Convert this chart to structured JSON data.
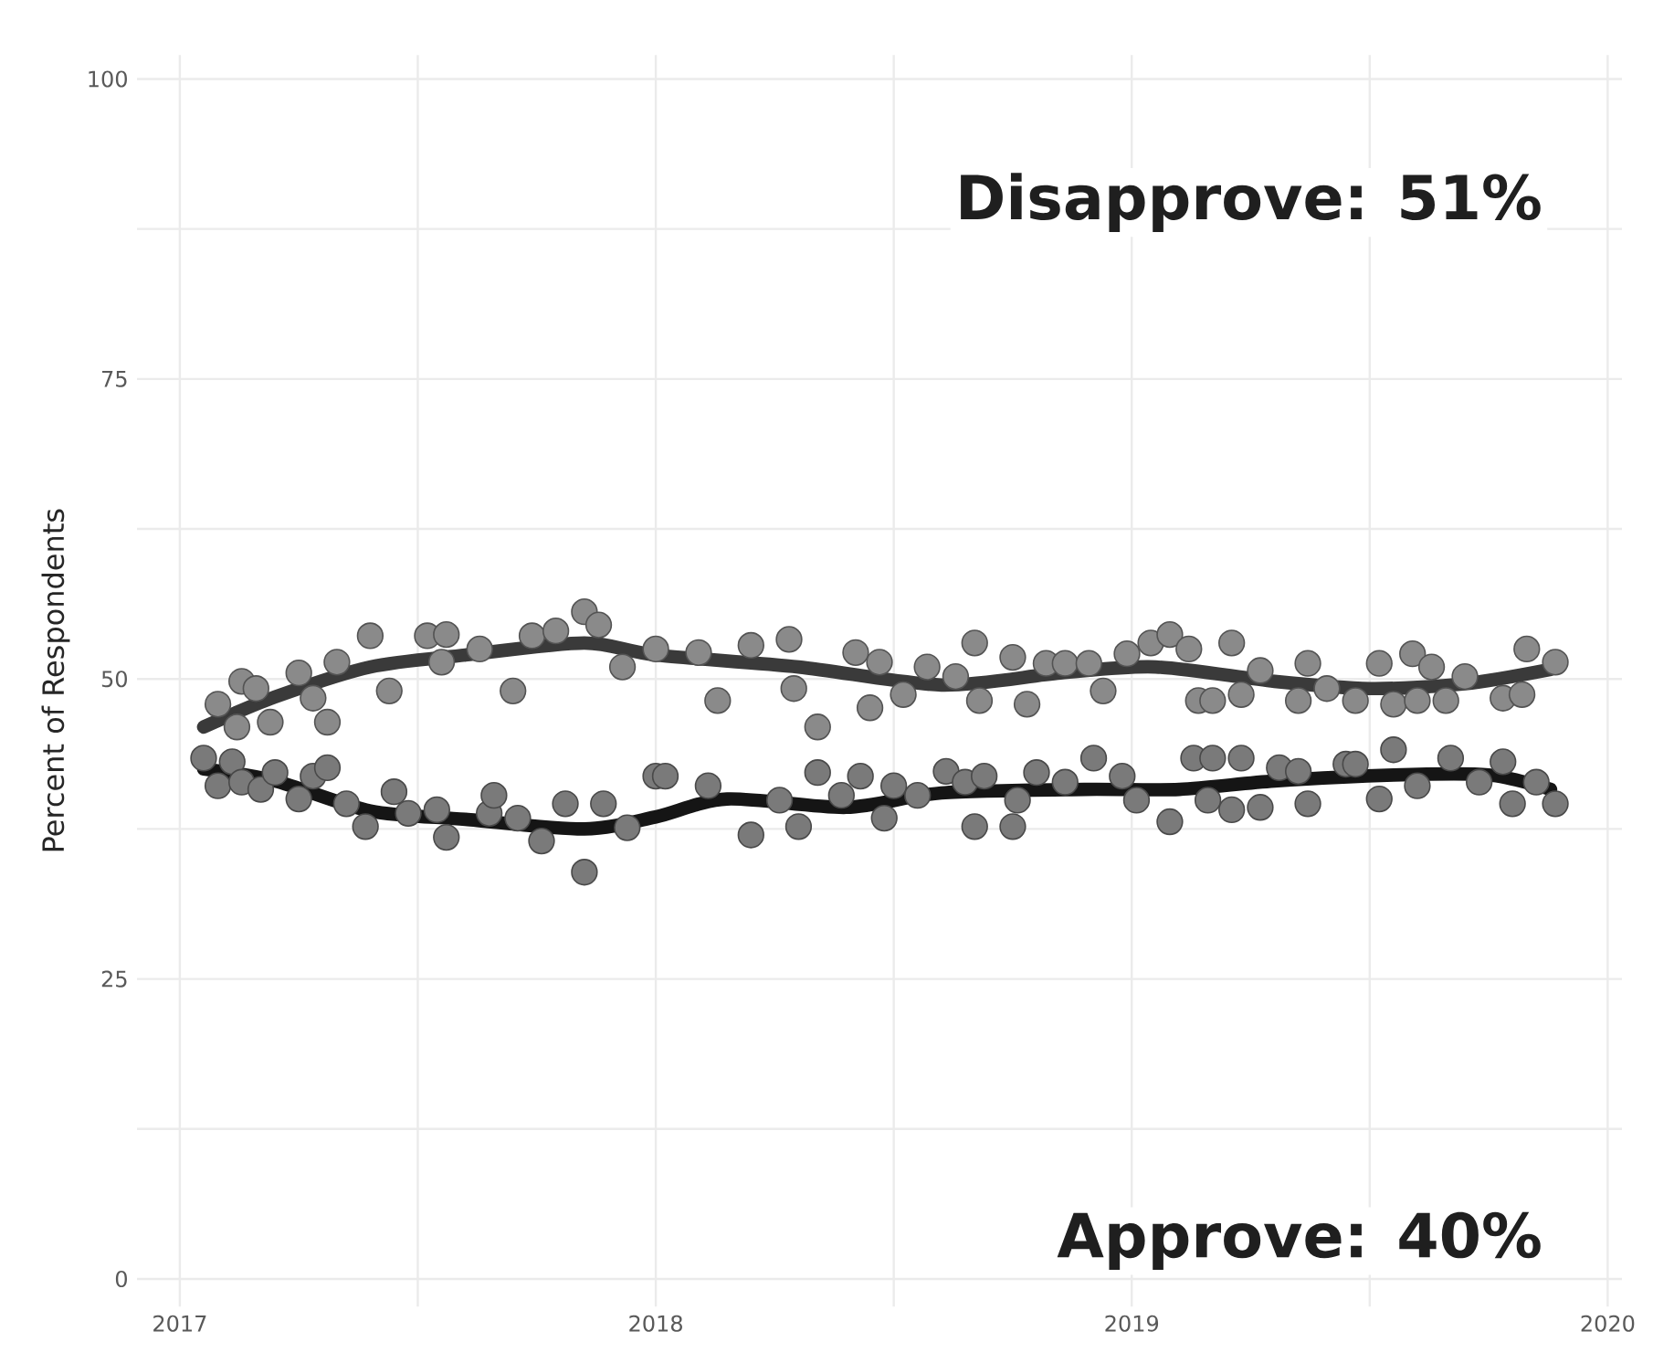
{
  "chart_data": {
    "type": "scatter",
    "ylabel": "Percent of Respondents",
    "annotations": [
      "Disapprove: 51%",
      "Approve: 40%"
    ],
    "xlim": [
      2016.91,
      2020.03
    ],
    "ylim": [
      -2.3,
      102
    ],
    "xticks": [
      2017,
      2018,
      2019,
      2020
    ],
    "yticks": [
      0,
      25,
      50,
      75,
      100
    ],
    "grid": true,
    "series": [
      {
        "marker": "circle",
        "color": "#8a8a8a",
        "x": [
          2017.08,
          2017.12,
          2017.13,
          2017.16,
          2017.19,
          2017.25,
          2017.28,
          2017.31,
          2017.33,
          2017.4,
          2017.44,
          2017.52,
          2017.55,
          2017.56,
          2017.63,
          2017.7,
          2017.74,
          2017.79,
          2017.85,
          2017.88,
          2017.93,
          2018.0,
          2018.09,
          2018.13,
          2018.2,
          2018.28,
          2018.29,
          2018.34,
          2018.42,
          2018.45,
          2018.47,
          2018.52,
          2018.57,
          2018.63,
          2018.67,
          2018.68,
          2018.75,
          2018.78,
          2018.82,
          2018.86,
          2018.91,
          2018.94,
          2018.99,
          2019.04,
          2019.08,
          2019.12,
          2019.14,
          2019.17,
          2019.21,
          2019.23,
          2019.27,
          2019.35,
          2019.37,
          2019.41,
          2019.47,
          2019.52,
          2019.55,
          2019.59,
          2019.6,
          2019.63,
          2019.66,
          2019.7,
          2019.78,
          2019.82,
          2019.83,
          2019.89
        ],
        "values": [
          47.9,
          46.0,
          49.8,
          49.2,
          46.4,
          50.5,
          48.4,
          46.4,
          51.4,
          53.6,
          49.0,
          53.6,
          51.4,
          53.7,
          52.5,
          49.0,
          53.6,
          54.0,
          55.6,
          54.5,
          51.0,
          52.5,
          52.2,
          48.2,
          52.8,
          53.3,
          49.2,
          46.0,
          52.2,
          47.6,
          51.4,
          48.7,
          51.0,
          50.2,
          53.0,
          48.2,
          51.8,
          47.9,
          51.3,
          51.3,
          51.3,
          49.0,
          52.1,
          53.0,
          53.7,
          52.5,
          48.2,
          48.2,
          53.0,
          48.7,
          50.7,
          48.2,
          51.3,
          49.2,
          48.2,
          51.3,
          47.9,
          52.1,
          48.2,
          51.0,
          48.2,
          50.2,
          48.4,
          48.7,
          52.5,
          51.4
        ]
      },
      {
        "marker": "circle",
        "color": "#7a7a7a",
        "x": [
          2017.05,
          2017.08,
          2017.11,
          2017.13,
          2017.17,
          2017.2,
          2017.25,
          2017.28,
          2017.31,
          2017.35,
          2017.39,
          2017.45,
          2017.48,
          2017.54,
          2017.56,
          2017.65,
          2017.66,
          2017.71,
          2017.76,
          2017.81,
          2017.85,
          2017.89,
          2017.94,
          2018.0,
          2018.02,
          2018.11,
          2018.2,
          2018.26,
          2018.3,
          2018.34,
          2018.39,
          2018.43,
          2018.48,
          2018.5,
          2018.55,
          2018.61,
          2018.65,
          2018.67,
          2018.69,
          2018.75,
          2018.76,
          2018.8,
          2018.86,
          2018.92,
          2018.98,
          2019.01,
          2019.08,
          2019.13,
          2019.16,
          2019.17,
          2019.21,
          2019.23,
          2019.27,
          2019.31,
          2019.35,
          2019.37,
          2019.45,
          2019.47,
          2019.52,
          2019.55,
          2019.6,
          2019.67,
          2019.73,
          2019.78,
          2019.8,
          2019.85,
          2019.89
        ],
        "values": [
          43.4,
          41.1,
          43.1,
          41.4,
          40.8,
          42.2,
          40.0,
          41.9,
          42.6,
          39.6,
          37.7,
          40.6,
          38.8,
          39.1,
          36.8,
          38.8,
          40.3,
          38.4,
          36.5,
          39.6,
          33.9,
          39.6,
          37.6,
          41.9,
          41.9,
          41.1,
          37.0,
          39.9,
          37.7,
          42.2,
          40.3,
          41.9,
          38.4,
          41.1,
          40.3,
          42.3,
          41.4,
          37.7,
          41.9,
          37.7,
          39.9,
          42.2,
          41.4,
          43.4,
          41.9,
          39.9,
          38.1,
          43.4,
          39.9,
          43.4,
          39.1,
          43.4,
          39.3,
          42.6,
          42.3,
          39.6,
          42.9,
          42.9,
          40.0,
          44.1,
          41.1,
          43.4,
          41.4,
          43.1,
          39.6,
          41.4,
          39.6
        ]
      },
      {
        "type": "line",
        "marker": "none",
        "color": "#3a3a3a",
        "x": [
          2017.05,
          2017.2,
          2017.4,
          2017.6,
          2017.85,
          2018.0,
          2018.3,
          2018.6,
          2018.85,
          2019.05,
          2019.3,
          2019.5,
          2019.7,
          2019.88
        ],
        "values": [
          46,
          48.5,
          51,
          52,
          53,
          52,
          51,
          49.5,
          50.5,
          51,
          49.8,
          49.2,
          49.6,
          50.8
        ]
      },
      {
        "type": "line",
        "marker": "none",
        "color": "#151515",
        "x": [
          2017.05,
          2017.2,
          2017.4,
          2017.6,
          2017.85,
          2018.0,
          2018.15,
          2018.4,
          2018.6,
          2018.9,
          2019.1,
          2019.3,
          2019.55,
          2019.75,
          2019.88
        ],
        "values": [
          42.5,
          41.5,
          39,
          38.3,
          37.5,
          38.5,
          40,
          39.3,
          40.5,
          40.8,
          40.8,
          41.5,
          42,
          42,
          40.8
        ]
      }
    ]
  }
}
